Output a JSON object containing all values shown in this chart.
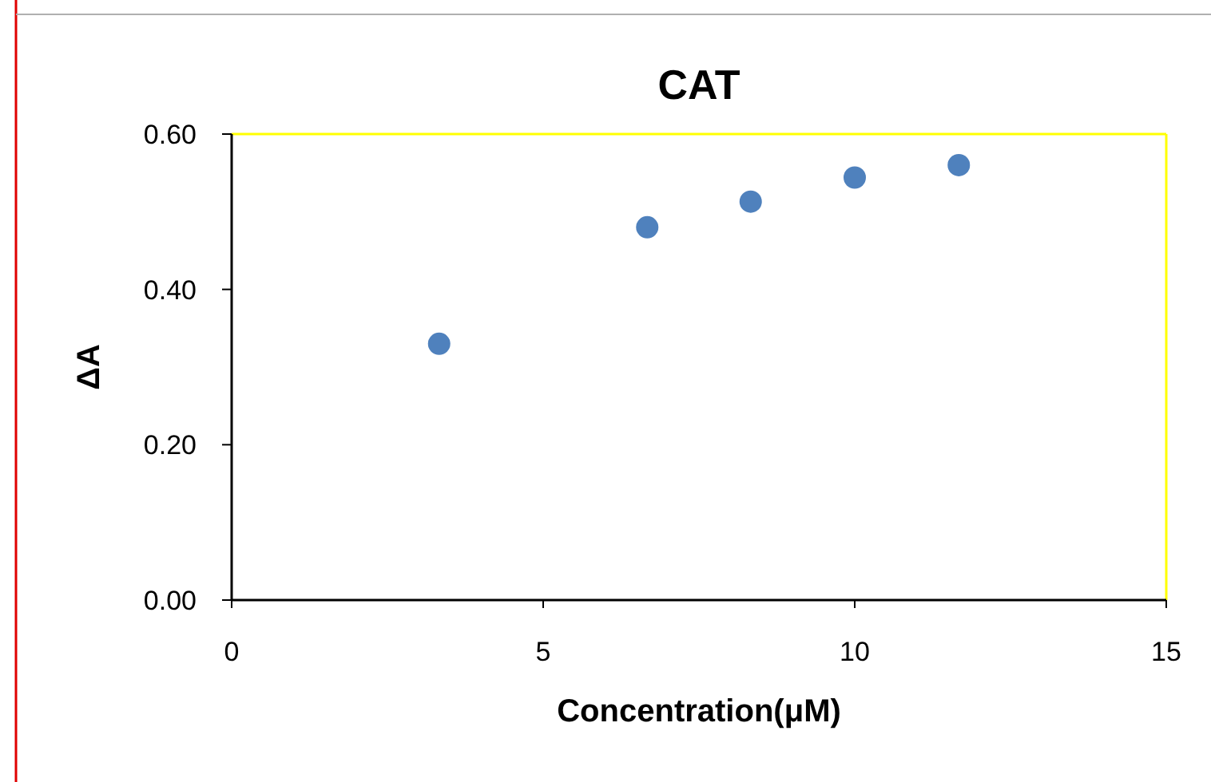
{
  "chart_data": {
    "type": "scatter",
    "title": "CAT",
    "xlabel": "Concentration(μM)",
    "ylabel": "ΔA",
    "x": [
      3.33,
      6.67,
      8.33,
      10,
      11.67
    ],
    "series": [
      {
        "color": "#4f81bd",
        "values": [
          0.33,
          0.48,
          0.513,
          0.544,
          0.56
        ]
      }
    ],
    "xlim": [
      0,
      15
    ],
    "xticks": [
      0,
      5,
      10,
      15
    ],
    "ylim": [
      0,
      0.6
    ],
    "yticks": [
      {
        "value": 0,
        "label": "0.00"
      },
      {
        "value": 0.2,
        "label": "0.20"
      },
      {
        "value": 0.4,
        "label": "0.40"
      },
      {
        "value": 0.6,
        "label": "0.60"
      }
    ],
    "marker": "circle",
    "grid": false
  }
}
